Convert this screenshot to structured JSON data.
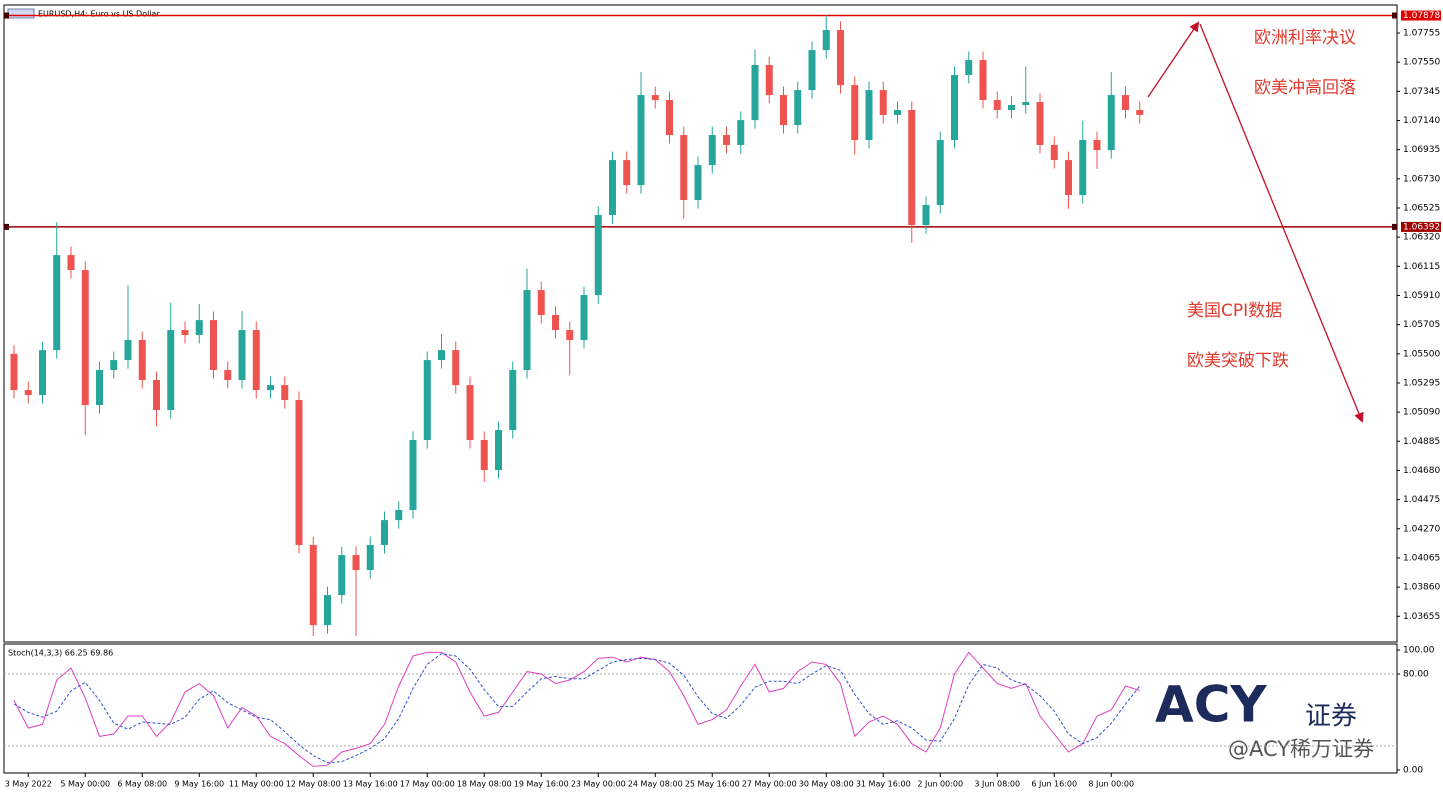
{
  "chart_data": [
    {
      "type": "candlestick",
      "title": "EURUSD,H4: Euro vs US Dollar",
      "categories": [
        null,
        "3 May 2022",
        null,
        null,
        null,
        "5 May 00:00",
        null,
        null,
        null,
        "6 May 08:00",
        null,
        null,
        null,
        "9 May 16:00",
        null,
        null,
        null,
        "11 May 00:00",
        null,
        null,
        null,
        "12 May 08:00",
        null,
        null,
        null,
        "13 May 16:00",
        null,
        null,
        null,
        "17 May 00:00",
        null,
        null,
        null,
        "18 May 08:00",
        null,
        null,
        null,
        "19 May 16:00",
        null,
        null,
        null,
        "23 May 00:00",
        null,
        null,
        null,
        "24 May 08:00",
        null,
        null,
        null,
        "25 May 16:00",
        null,
        null,
        null,
        "27 May 00:00",
        null,
        null,
        null,
        "30 May 08:00",
        null,
        null,
        null,
        "31 May 16:00",
        null,
        null,
        null,
        "2 Jun 00:00",
        null,
        null,
        null,
        "3 Jun 08:00",
        null,
        null,
        null,
        "6 Jun 16:00",
        null,
        null,
        null,
        "8 Jun 00:00",
        null,
        null
      ],
      "open": [
        1.055,
        1.05245,
        1.0521,
        1.05526,
        1.06194,
        1.06089,
        1.0514,
        1.05386,
        1.05456,
        1.05597,
        1.05316,
        1.05105,
        1.05667,
        1.05632,
        1.05737,
        1.05386,
        1.05316,
        1.05667,
        1.05245,
        1.0528,
        1.05175,
        1.04156,
        1.03593,
        1.03804,
        1.04085,
        1.0398,
        1.04156,
        1.04331,
        1.04402,
        1.04894,
        1.05456,
        1.05526,
        1.0528,
        1.04894,
        1.04683,
        1.04964,
        1.05386,
        1.05948,
        1.05773,
        1.05667,
        1.05597,
        1.05913,
        1.06476,
        1.06862,
        1.06686,
        1.07319,
        1.07284,
        1.07038,
        1.06581,
        1.06827,
        1.07038,
        1.06968,
        1.07143,
        1.0753,
        1.07319,
        1.07108,
        1.07354,
        1.07635,
        1.07776,
        1.07389,
        1.07003,
        1.07354,
        1.07179,
        1.07214,
        1.06405,
        1.06546,
        1.07003,
        1.0746,
        1.07565,
        1.07284,
        1.07214,
        1.07249,
        1.0727,
        1.06968,
        1.06862,
        1.06616,
        1.07003,
        1.06932,
        1.07319,
        1.07214
      ],
      "high": [
        1.0556,
        1.05305,
        1.05586,
        1.06426,
        1.06254,
        1.06149,
        1.05446,
        1.05516,
        1.05983,
        1.05657,
        1.05376,
        1.0586,
        1.05727,
        1.0585,
        1.05797,
        1.05446,
        1.058,
        1.05727,
        1.0534,
        1.0534,
        1.05235,
        1.04216,
        1.03864,
        1.04145,
        1.04145,
        1.04216,
        1.04391,
        1.04462,
        1.04954,
        1.05516,
        1.0564,
        1.05586,
        1.0534,
        1.04954,
        1.05024,
        1.05446,
        1.061,
        1.06008,
        1.05833,
        1.05727,
        1.05973,
        1.06536,
        1.06922,
        1.06922,
        1.0748,
        1.07379,
        1.07344,
        1.07098,
        1.06887,
        1.07098,
        1.07098,
        1.07203,
        1.0764,
        1.0759,
        1.07379,
        1.07414,
        1.07695,
        1.0788,
        1.07836,
        1.07449,
        1.07414,
        1.07414,
        1.07274,
        1.07274,
        1.06606,
        1.07063,
        1.0752,
        1.07625,
        1.07625,
        1.07344,
        1.07309,
        1.0752,
        1.0733,
        1.07028,
        1.06922,
        1.0714,
        1.07063,
        1.0748,
        1.07379,
        1.07274
      ],
      "low": [
        1.05185,
        1.0515,
        1.0515,
        1.05466,
        1.06029,
        1.04929,
        1.0508,
        1.05326,
        1.05396,
        1.05256,
        1.0499,
        1.05045,
        1.05572,
        1.05572,
        1.05326,
        1.05256,
        1.05256,
        1.05185,
        1.05185,
        1.05115,
        1.04096,
        1.03516,
        1.03533,
        1.03744,
        1.03516,
        1.0392,
        1.04096,
        1.04271,
        1.04342,
        1.04834,
        1.05396,
        1.0522,
        1.04834,
        1.046,
        1.04623,
        1.04904,
        1.05326,
        1.05713,
        1.05607,
        1.0535,
        1.05537,
        1.05853,
        1.06416,
        1.06626,
        1.06626,
        1.07224,
        1.06978,
        1.0645,
        1.06521,
        1.06767,
        1.06908,
        1.06908,
        1.07083,
        1.07259,
        1.07048,
        1.07048,
        1.07294,
        1.07575,
        1.07329,
        1.069,
        1.06943,
        1.07119,
        1.07119,
        1.0628,
        1.06345,
        1.06486,
        1.06943,
        1.074,
        1.07224,
        1.07154,
        1.07154,
        1.07189,
        1.06908,
        1.06802,
        1.0652,
        1.06556,
        1.068,
        1.06872,
        1.07154,
        1.07119
      ],
      "close": [
        1.05245,
        1.0521,
        1.05526,
        1.06194,
        1.06089,
        1.0514,
        1.05386,
        1.05456,
        1.05597,
        1.05316,
        1.05105,
        1.05667,
        1.05632,
        1.05737,
        1.05386,
        1.05316,
        1.05667,
        1.05245,
        1.0528,
        1.05175,
        1.04156,
        1.03593,
        1.03804,
        1.04085,
        1.0398,
        1.04156,
        1.04331,
        1.04402,
        1.04894,
        1.05456,
        1.05526,
        1.0528,
        1.04894,
        1.04683,
        1.04964,
        1.05386,
        1.05948,
        1.05773,
        1.05667,
        1.05597,
        1.05913,
        1.06476,
        1.06862,
        1.06686,
        1.07319,
        1.07284,
        1.07038,
        1.06581,
        1.06827,
        1.07038,
        1.06968,
        1.07143,
        1.0753,
        1.07319,
        1.07108,
        1.07354,
        1.07635,
        1.07776,
        1.07389,
        1.07003,
        1.07354,
        1.07179,
        1.07214,
        1.06405,
        1.06546,
        1.07003,
        1.0746,
        1.07565,
        1.07284,
        1.07214,
        1.07249,
        1.0727,
        1.06968,
        1.06862,
        1.06616,
        1.07003,
        1.06932,
        1.07319,
        1.07214,
        1.07179
      ],
      "up_color": "#26a69a",
      "down_color": "#ef5350",
      "ylim": [
        1.03474,
        1.07952
      ],
      "yticks": [
        1.07755,
        {
          "value": 1.0755,
          "label": "1.07550"
        },
        1.07345,
        {
          "value": 1.0714,
          "label": "1.07140"
        },
        1.06935,
        {
          "value": 1.0673,
          "label": "1.06730"
        },
        1.06525,
        {
          "value": 1.0632,
          "label": "1.06320"
        },
        1.06115,
        {
          "value": 1.0591,
          "label": "1.05910"
        },
        1.05705,
        {
          "value": 1.055,
          "label": "1.05500"
        },
        1.05295,
        {
          "value": 1.0509,
          "label": "1.05090"
        },
        1.04885,
        {
          "value": 1.0468,
          "label": "1.04680"
        },
        1.04475,
        {
          "value": 1.0427,
          "label": "1.04270"
        },
        1.04065,
        {
          "value": 1.0386,
          "label": "1.03860"
        },
        1.03655
      ],
      "hlines": [
        {
          "value": 1.07878,
          "color": "#e00000"
        },
        {
          "value": 1.06392,
          "color": "#a00000"
        }
      ],
      "annotations": [
        "欧洲利率决议",
        "欧美冲高回落",
        "美国CPI数据",
        "欧美突破下跌"
      ],
      "watermark": [
        "ACY",
        "证券",
        "@ACY稀万证券"
      ]
    },
    {
      "type": "line",
      "title": "Stoch(14,3,3) 66.25 69.86",
      "series": [
        {
          "name": "Main",
          "color": "#e040c0",
          "values": [
            58,
            35,
            38,
            75,
            85,
            60,
            28,
            30,
            45,
            45,
            28,
            40,
            65,
            72,
            62,
            35,
            52,
            45,
            28,
            22,
            12,
            3,
            4,
            15,
            18,
            22,
            38,
            70,
            95,
            98,
            98,
            90,
            65,
            45,
            48,
            65,
            82,
            80,
            72,
            75,
            82,
            93,
            94,
            90,
            94,
            92,
            82,
            62,
            38,
            42,
            50,
            70,
            88,
            65,
            68,
            82,
            90,
            88,
            72,
            28,
            40,
            45,
            38,
            22,
            15,
            35,
            80,
            98,
            85,
            72,
            68,
            72,
            45,
            30,
            15,
            22,
            45,
            50,
            70,
            66.25
          ]
        },
        {
          "name": "Signal",
          "color": "#3050d0",
          "dashed": true,
          "values": [
            55,
            48,
            44,
            49,
            66,
            73,
            58,
            39,
            34,
            40,
            39,
            38,
            44,
            59,
            66,
            56,
            50,
            44,
            42,
            32,
            21,
            12,
            6,
            7,
            12,
            18,
            26,
            43,
            68,
            88,
            97,
            95,
            84,
            67,
            53,
            53,
            65,
            76,
            78,
            76,
            76,
            83,
            90,
            92,
            93,
            92,
            89,
            79,
            61,
            47,
            43,
            54,
            69,
            74,
            74,
            72,
            80,
            87,
            83,
            63,
            47,
            38,
            41,
            35,
            25,
            24,
            43,
            71,
            88,
            85,
            75,
            71,
            62,
            49,
            30,
            22,
            27,
            39,
            55,
            69.86
          ]
        }
      ],
      "ylim": [
        0,
        100
      ],
      "yticks": [
        {
          "value": 100,
          "label": "100.00"
        },
        {
          "value": 80,
          "label": "80.00"
        },
        {
          "value": 0,
          "label": "0.00"
        }
      ],
      "levels": [
        80,
        20
      ]
    }
  ]
}
